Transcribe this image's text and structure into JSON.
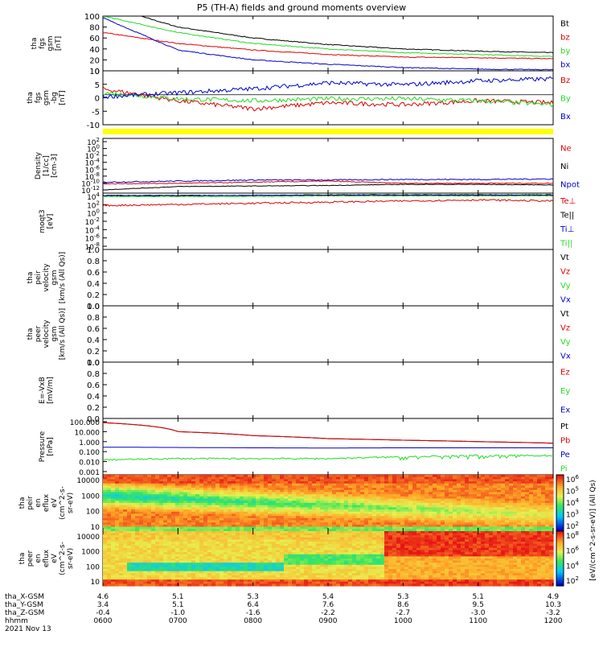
{
  "title": "P5 (TH-A) fields and ground moments overview",
  "colors": {
    "black": "#000000",
    "red": "#e00000",
    "green": "#22dd22",
    "blue": "#0000cc",
    "yellow": "#ffff00"
  },
  "chart_data": [
    {
      "type": "line",
      "id": "fgs-mag",
      "ylabel": [
        "tha",
        "fgs",
        "gsm",
        "[nT]"
      ],
      "ylim": [
        0,
        100
      ],
      "yticks": [
        0,
        20,
        40,
        60,
        80,
        100
      ],
      "series": [
        {
          "name": "Bt",
          "color": "#000000",
          "x": [
            "0600",
            "0700",
            "0800",
            "0900",
            "1000",
            "1100",
            "1200"
          ],
          "values": [
            120,
            80,
            60,
            48,
            40,
            36,
            33
          ]
        },
        {
          "name": "bz",
          "color": "#e00000",
          "x": [
            "0600",
            "0700",
            "0800",
            "0900",
            "1000",
            "1100",
            "1200"
          ],
          "values": [
            70,
            50,
            38,
            30,
            25,
            24,
            22
          ]
        },
        {
          "name": "by",
          "color": "#22dd22",
          "x": [
            "0600",
            "0700",
            "0800",
            "0900",
            "1000",
            "1100",
            "1200"
          ],
          "values": [
            100,
            70,
            50,
            40,
            33,
            30,
            26
          ]
        },
        {
          "name": "bx",
          "color": "#0000cc",
          "x": [
            "0600",
            "0700",
            "0800",
            "0900",
            "1000",
            "1100",
            "1200"
          ],
          "values": [
            97,
            38,
            20,
            12,
            6,
            3,
            2
          ]
        }
      ]
    },
    {
      "type": "line",
      "id": "fgs-gse",
      "ylabel": [
        "tha",
        "fgs",
        "gsm",
        "-bg",
        "[nT]"
      ],
      "ylim": [
        -15,
        12
      ],
      "yticks": [
        -10,
        -5,
        0,
        5,
        10
      ],
      "series": [
        {
          "name": "Bz",
          "color": "#e00000",
          "x": [
            "0600",
            "0700",
            "0800",
            "0900",
            "1000",
            "1100",
            "1200"
          ],
          "values": [
            3,
            -3,
            -7,
            -4,
            -5,
            -3,
            -4
          ]
        },
        {
          "name": "By",
          "color": "#22dd22",
          "x": [
            "0600",
            "0700",
            "0800",
            "0900",
            "1000",
            "1100",
            "1200"
          ],
          "values": [
            1,
            -2,
            -3,
            -2,
            -2,
            -3,
            -5
          ]
        },
        {
          "name": "Bx",
          "color": "#0000cc",
          "x": [
            "0600",
            "0700",
            "0800",
            "0900",
            "1000",
            "1100",
            "1200"
          ],
          "values": [
            -1,
            1,
            3,
            6,
            5,
            7,
            8
          ]
        }
      ]
    },
    {
      "type": "line",
      "id": "density",
      "ylabel": [
        "Density",
        "[1/cc]",
        "[cm-3]"
      ],
      "log": true,
      "yticks": [
        "10^2",
        "10^0",
        "10^-2",
        "10^-4",
        "10^-6",
        "10^-8",
        "10^-10",
        "10^-12"
      ],
      "series": [
        {
          "name": "Ne",
          "color": "#e00000"
        },
        {
          "name": "Ni",
          "color": "#000000"
        },
        {
          "name": "Npot",
          "color": "#0000cc"
        }
      ]
    },
    {
      "type": "line",
      "id": "temperature",
      "ylabel": [
        "moqt3",
        "[eV]"
      ],
      "log": true,
      "yticks": [
        "10^4",
        "10^2",
        "10^0",
        "10^-2",
        "10^-4",
        "10^-6",
        "10^-8"
      ],
      "series": [
        {
          "name": "Te⊥",
          "color": "#e00000"
        },
        {
          "name": "Te||",
          "color": "#000000"
        },
        {
          "name": "Ti⊥",
          "color": "#0000cc"
        },
        {
          "name": "Ti||",
          "color": "#22dd22"
        }
      ]
    },
    {
      "type": "line",
      "id": "peir-velocity",
      "ylabel": [
        "tha",
        "peir",
        "velocity",
        "gsm",
        "[km/s (All Qs)]"
      ],
      "ylim": [
        0,
        1
      ],
      "yticks": [
        "0.0",
        "0.2",
        "0.4",
        "0.6",
        "0.8",
        "1.0"
      ],
      "series": [
        {
          "name": "Vt",
          "color": "#000000"
        },
        {
          "name": "Vz",
          "color": "#e00000"
        },
        {
          "name": "Vy",
          "color": "#22dd22"
        },
        {
          "name": "Vx",
          "color": "#0000cc"
        }
      ]
    },
    {
      "type": "line",
      "id": "peer-velocity",
      "ylabel": [
        "tha",
        "peer",
        "velocity",
        "gsm",
        "[km/s (All Qs)]"
      ],
      "ylim": [
        0,
        1
      ],
      "yticks": [
        "0.0",
        "0.2",
        "0.4",
        "0.6",
        "0.8",
        "1.0"
      ],
      "series": [
        {
          "name": "Vt",
          "color": "#000000"
        },
        {
          "name": "Vz",
          "color": "#e00000"
        },
        {
          "name": "Vy",
          "color": "#22dd22"
        },
        {
          "name": "Vx",
          "color": "#0000cc"
        }
      ]
    },
    {
      "type": "line",
      "id": "efield",
      "ylabel": [
        "E=-VxB",
        "[mV/m]"
      ],
      "ylim": [
        0,
        1
      ],
      "yticks": [
        "0.0",
        "0.2",
        "0.4",
        "0.6",
        "0.8",
        "1.0"
      ],
      "series": [
        {
          "name": "Ez",
          "color": "#e00000"
        },
        {
          "name": "Ey",
          "color": "#22dd22"
        },
        {
          "name": "Ex",
          "color": "#0000cc"
        }
      ]
    },
    {
      "type": "line",
      "id": "pressure",
      "ylabel": [
        "Pressure",
        "[nPa]"
      ],
      "log": true,
      "yticks": [
        "100.000",
        "10.000",
        "1.000",
        "0.100",
        "0.010",
        "0.001"
      ],
      "series": [
        {
          "name": "Pt",
          "color": "#000000",
          "x": [
            "0600",
            "0700",
            "0800",
            "0900",
            "1000",
            "1100",
            "1200"
          ],
          "values": [
            80,
            10,
            4.0,
            2.0,
            1.4,
            1.0,
            0.7
          ]
        },
        {
          "name": "Pb",
          "color": "#e00000",
          "x": [
            "0600",
            "0700",
            "0800",
            "0900",
            "1000",
            "1100",
            "1200"
          ],
          "values": [
            80,
            10,
            4.0,
            2.0,
            1.4,
            1.0,
            0.7
          ]
        },
        {
          "name": "Pe",
          "color": "#0000cc",
          "x": [
            "0600",
            "0700",
            "0800",
            "0900",
            "1000",
            "1100",
            "1200"
          ],
          "values": [
            0.28,
            0.26,
            0.24,
            0.23,
            0.24,
            0.24,
            0.24
          ]
        },
        {
          "name": "Pi",
          "color": "#22dd22",
          "x": [
            "0600",
            "0700",
            "0800",
            "0900",
            "1000",
            "1100",
            "1200"
          ],
          "values": [
            0.015,
            0.02,
            0.02,
            0.02,
            0.03,
            0.04,
            0.04
          ]
        }
      ]
    },
    {
      "type": "heatmap",
      "id": "peir-spec",
      "ylabel": [
        "tha",
        "peir",
        "en",
        "eflux",
        "eV",
        "(cm^2-s-",
        "sr-eV)"
      ],
      "log": true,
      "yticks": [
        "10000",
        "1000",
        "100",
        "10"
      ],
      "colorbar": {
        "ticks": [
          "10^6",
          "10^5",
          "10^4",
          "10^3",
          "10^2"
        ],
        "label": "[eV/(cm^2-s-sr-eV)] (All Qs)"
      }
    },
    {
      "type": "heatmap",
      "id": "peer-spec",
      "ylabel": [
        "tha",
        "peer",
        "en",
        "eflux",
        "eV",
        "(cm^2-s-",
        "sr-eV)"
      ],
      "log": true,
      "yticks": [
        "10000",
        "1000",
        "100",
        "10"
      ],
      "colorbar": {
        "ticks": [
          "10^8",
          "10^6",
          "10^4",
          "10^2"
        ],
        "label": "[eV/(cm^2-s-sr-eV)] (All Qs)"
      }
    }
  ],
  "xaxis": {
    "rows": [
      {
        "label": "tha_X-GSM",
        "values": [
          "4.6",
          "5.1",
          "5.3",
          "5.4",
          "5.3",
          "5.1",
          "4.9"
        ]
      },
      {
        "label": "tha_Y-GSM",
        "values": [
          "3.4",
          "5.1",
          "6.4",
          "7.6",
          "8.6",
          "9.5",
          "10.3"
        ]
      },
      {
        "label": "tha_Z-GSM",
        "values": [
          "-0.4",
          "-1.0",
          "-1.6",
          "-2.2",
          "-2.7",
          "-3.0",
          "-3.2"
        ]
      },
      {
        "label": "hhmm",
        "values": [
          "0600",
          "0700",
          "0800",
          "0900",
          "1000",
          "1100",
          "1200"
        ]
      }
    ],
    "date": "2021 Nov 13"
  }
}
